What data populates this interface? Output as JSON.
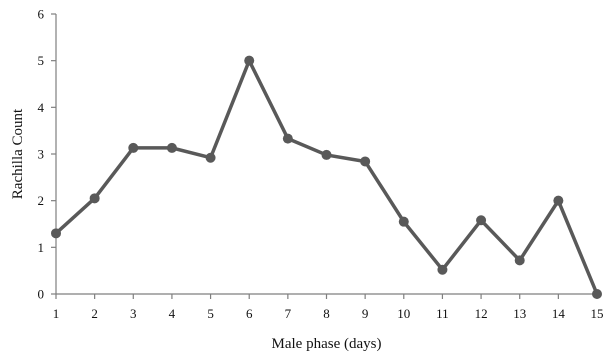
{
  "chart_data": {
    "type": "line",
    "title": "",
    "xlabel": "Male phase (days)",
    "ylabel": "Rachilla Count",
    "x": [
      1,
      2,
      3,
      4,
      5,
      6,
      7,
      8,
      9,
      10,
      11,
      12,
      13,
      14,
      15
    ],
    "series": [
      {
        "values": [
          1.3,
          2.05,
          3.13,
          3.13,
          2.92,
          5.0,
          3.33,
          2.98,
          2.84,
          1.55,
          0.52,
          1.58,
          0.72,
          2.0,
          0.0
        ]
      }
    ],
    "xlim": [
      1,
      15
    ],
    "ylim": [
      0,
      6
    ],
    "xticks": [
      "1",
      "2",
      "3",
      "4",
      "5",
      "6",
      "7",
      "8",
      "9",
      "10",
      "11",
      "12",
      "13",
      "14",
      "15"
    ],
    "yticks": [
      "0",
      "1",
      "2",
      "3",
      "4",
      "5",
      "6"
    ],
    "grid": false,
    "legend": "none",
    "colors": {
      "line": "#595959",
      "marker": "#595959",
      "axis": "#7f7f7f",
      "text": "#111111"
    }
  }
}
